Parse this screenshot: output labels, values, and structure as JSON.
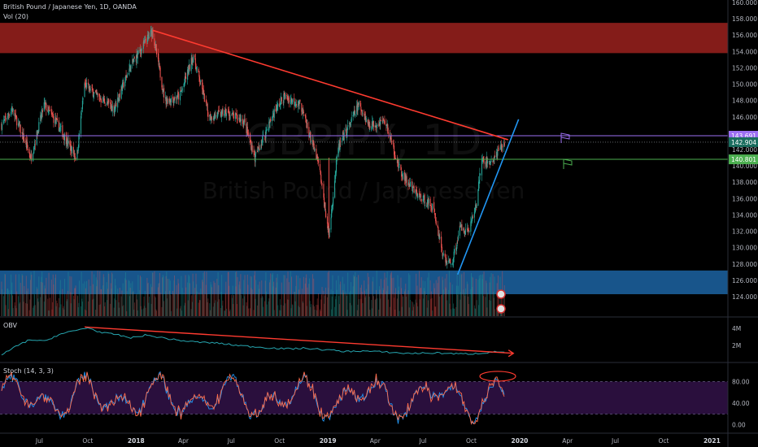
{
  "header": {
    "symbol_line": "British Pound / Japanese Yen, 1D, OANDA",
    "vol_label": "Vol (20)"
  },
  "watermark": {
    "ticker": "GBPJPY, 1D",
    "name": "British Pound / Japanese Yen"
  },
  "panes": {
    "obv_label": "OBV",
    "stoch_label": "Stoch (14, 3, 3)"
  },
  "colors": {
    "background": "#000000",
    "candle_up": "#26a69a",
    "candle_down": "#ef5350",
    "resistance_zone": "#8b1e1a",
    "support_zone": "#1b5e9a",
    "purple_line": "#9c6ff2",
    "green_line": "#4caf50",
    "trend_red": "#ff3b30",
    "trend_blue": "#2196f3",
    "stoch_band": "#2a0f3d"
  },
  "price_badges": {
    "upper": "143.691",
    "last": "142.904",
    "lower": "140.801"
  },
  "chart_data": [
    {
      "type": "candlestick",
      "title": "British Pound / Japanese Yen, 1D, OANDA",
      "x_tick_labels": [
        "Jul",
        "Oct",
        "2018",
        "Apr",
        "Jul",
        "Oct",
        "2019",
        "Apr",
        "Jul",
        "Oct",
        "2020",
        "Apr",
        "Jul",
        "Oct",
        "2021"
      ],
      "y_ticks": [
        124,
        126,
        128,
        130,
        132,
        134,
        136,
        138,
        140,
        142,
        144,
        146,
        148,
        150,
        152,
        154,
        156,
        158,
        160
      ],
      "ylim": [
        123.4,
        160.4
      ],
      "close_path": [
        {
          "date": "2017-04-20",
          "close": 145.0
        },
        {
          "date": "2017-05-10",
          "close": 147.0
        },
        {
          "date": "2017-06-15",
          "close": 141.0
        },
        {
          "date": "2017-07-10",
          "close": 147.5
        },
        {
          "date": "2017-08-10",
          "close": 144.5
        },
        {
          "date": "2017-08-31",
          "close": 142.0
        },
        {
          "date": "2017-09-10",
          "close": 141.0
        },
        {
          "date": "2017-09-25",
          "close": 150.0
        },
        {
          "date": "2017-10-20",
          "close": 148.5
        },
        {
          "date": "2017-11-20",
          "close": 147.0
        },
        {
          "date": "2017-12-20",
          "close": 152.0
        },
        {
          "date": "2018-02-01",
          "close": 156.5
        },
        {
          "date": "2018-02-25",
          "close": 148.0
        },
        {
          "date": "2018-03-25",
          "close": 148.5
        },
        {
          "date": "2018-04-20",
          "close": 153.5
        },
        {
          "date": "2018-05-20",
          "close": 146.0
        },
        {
          "date": "2018-06-20",
          "close": 146.5
        },
        {
          "date": "2018-07-25",
          "close": 145.5
        },
        {
          "date": "2018-08-15",
          "close": 141.0
        },
        {
          "date": "2018-09-20",
          "close": 146.5
        },
        {
          "date": "2018-10-10",
          "close": 148.5
        },
        {
          "date": "2018-11-10",
          "close": 147.5
        },
        {
          "date": "2018-12-15",
          "close": 140.0
        },
        {
          "date": "2019-01-03",
          "close": 131.5
        },
        {
          "date": "2019-01-20",
          "close": 142.0
        },
        {
          "date": "2019-03-01",
          "close": 147.5
        },
        {
          "date": "2019-03-20",
          "close": 145.0
        },
        {
          "date": "2019-04-20",
          "close": 145.5
        },
        {
          "date": "2019-05-20",
          "close": 139.0
        },
        {
          "date": "2019-06-20",
          "close": 136.5
        },
        {
          "date": "2019-07-20",
          "close": 135.0
        },
        {
          "date": "2019-08-10",
          "close": 128.5
        },
        {
          "date": "2019-08-25",
          "close": 128.0
        },
        {
          "date": "2019-09-10",
          "close": 132.5
        },
        {
          "date": "2019-09-25",
          "close": 132.0
        },
        {
          "date": "2019-10-10",
          "close": 135.0
        },
        {
          "date": "2019-10-20",
          "close": 140.5
        },
        {
          "date": "2019-11-10",
          "close": 140.5
        },
        {
          "date": "2019-12-03",
          "close": 142.9
        }
      ],
      "zones": [
        {
          "name": "resistance",
          "from": 153.8,
          "to": 157.5
        },
        {
          "name": "support",
          "from": 124.3,
          "to": 127.2
        }
      ],
      "horizontal_lines": [
        {
          "name": "purple",
          "value": 143.691
        },
        {
          "name": "green",
          "value": 140.801
        }
      ],
      "trendlines": [
        {
          "name": "descending-red",
          "from": {
            "date": "2018-02-01",
            "value": 156.6
          },
          "to": {
            "date": "2019-12-10",
            "value": 143.2
          }
        },
        {
          "name": "ascending-blue",
          "from": {
            "date": "2019-09-05",
            "value": 126.7
          },
          "to": {
            "date": "2019-12-30",
            "value": 145.7
          }
        }
      ]
    },
    {
      "type": "line",
      "title": "OBV",
      "y_tick_labels": [
        "4M",
        "2M"
      ],
      "x_range": [
        "2017-04-20",
        "2019-12-03"
      ],
      "values": [
        0.1,
        0.35,
        0.55,
        0.5,
        0.7,
        0.8,
        0.9,
        0.75,
        0.7,
        0.6,
        0.68,
        0.62,
        0.55,
        0.5,
        0.47,
        0.45,
        0.4,
        0.36,
        0.33,
        0.3,
        0.28,
        0.3,
        0.27,
        0.24,
        0.2,
        0.22,
        0.2,
        0.18,
        0.15,
        0.15,
        0.16,
        0.15,
        0.13,
        0.14,
        0.18,
        0.2
      ],
      "trendlines": [
        {
          "name": "obv-red",
          "from": {
            "date": "2017-09-25",
            "value": 0.92
          },
          "to": {
            "date": "2019-12-20",
            "value": 0.15
          }
        }
      ]
    },
    {
      "type": "line",
      "title": "Stoch (14, 3, 3)",
      "y_ticks": [
        0,
        40,
        80
      ],
      "band": [
        20,
        80
      ],
      "ylim": [
        -5,
        105
      ]
    }
  ]
}
